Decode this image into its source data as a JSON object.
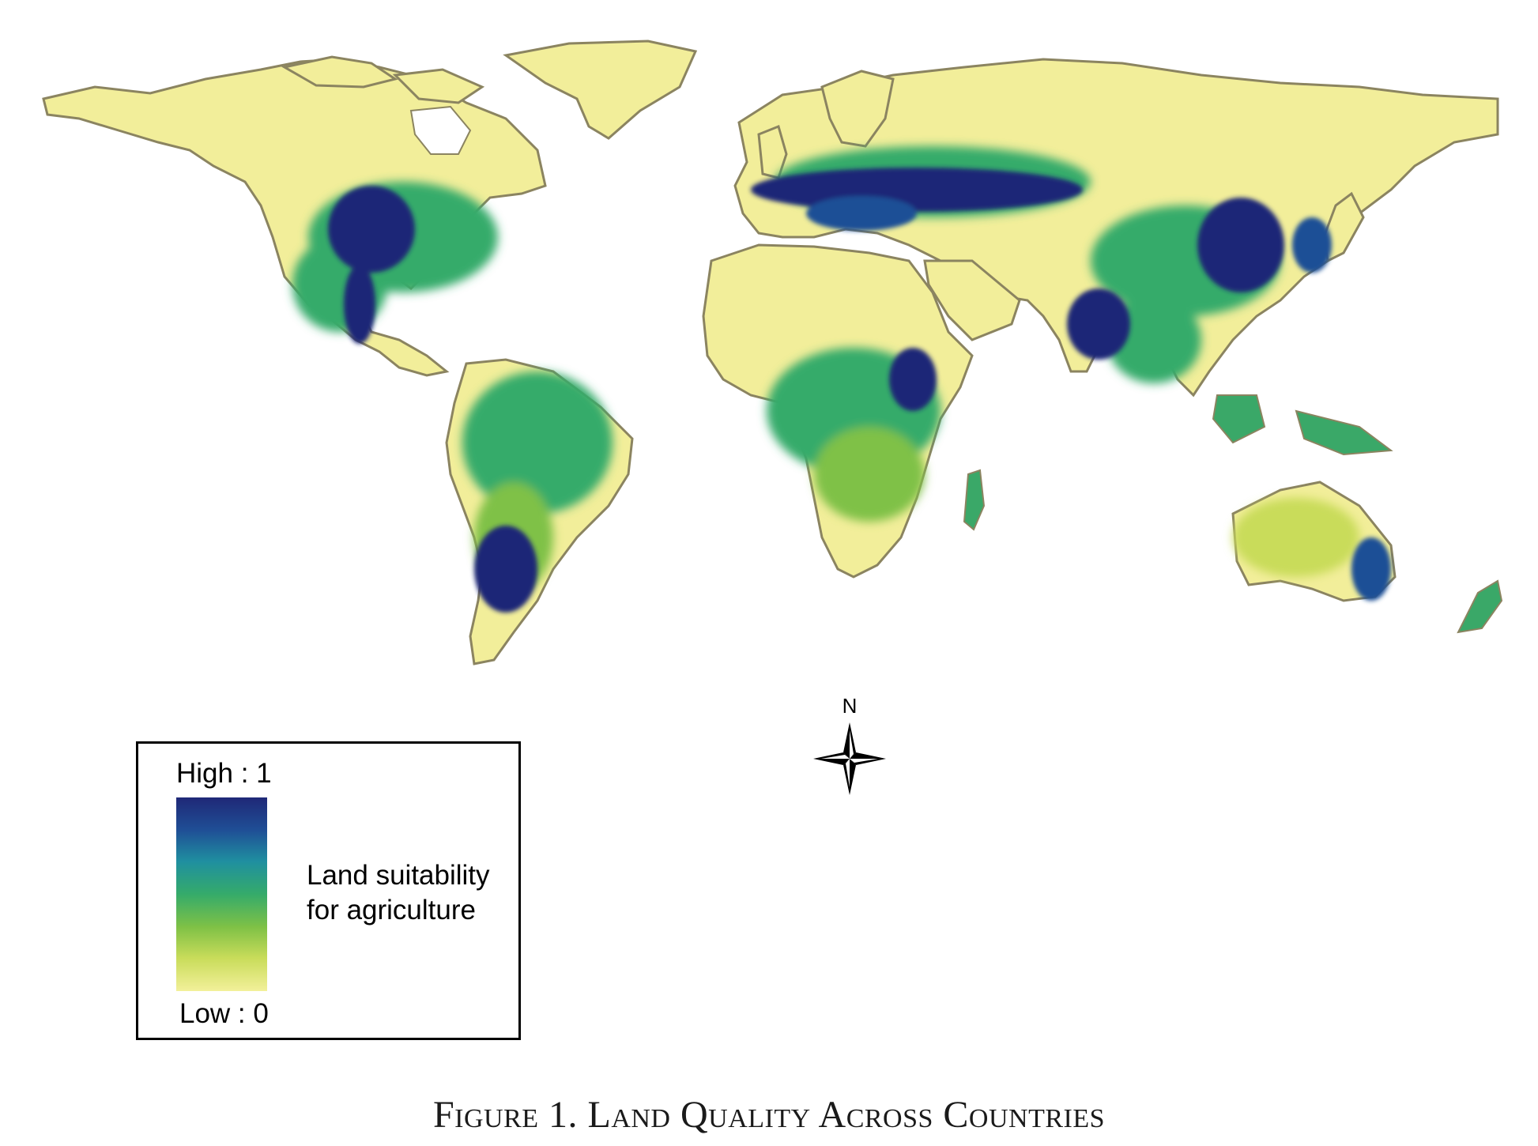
{
  "figure": {
    "caption": "Figure 1. Land Quality Across Countries"
  },
  "legend": {
    "high_label": "High : 1",
    "low_label": "Low : 0",
    "title_line1": "Land suitability",
    "title_line2": "for agriculture",
    "color_ramp": [
      "#1f2877",
      "#1f4f96",
      "#1f8fa0",
      "#35ab6a",
      "#7fc146",
      "#c9dc5a",
      "#f2f09a"
    ]
  },
  "north_arrow": {
    "label": "N"
  },
  "map": {
    "projection": "world map",
    "land_base_color": "#f2ee9a",
    "border_color": "#8b8460",
    "high_suitability_color": "#1f2877",
    "medium_suitability_color": "#35ab6a"
  }
}
